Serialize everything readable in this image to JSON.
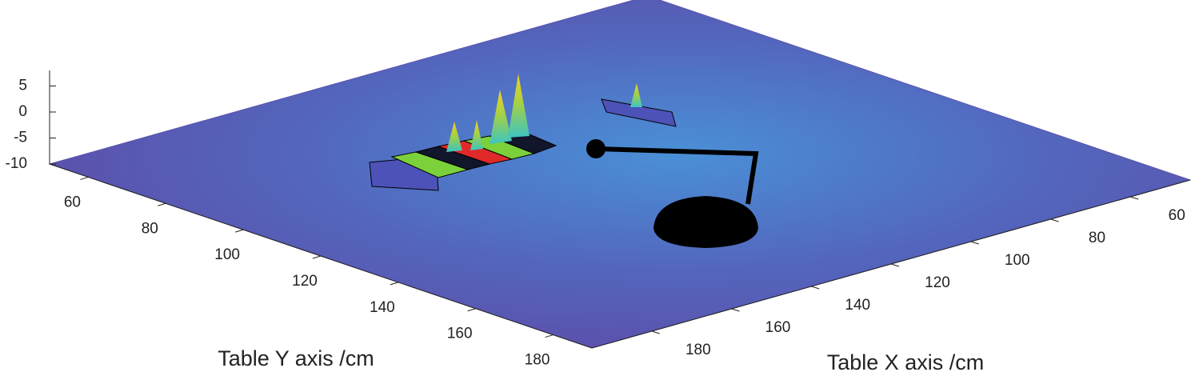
{
  "chart_data": {
    "type": "surface3d",
    "xlabel": "Table X axis /cm",
    "ylabel": "Table Y axis /cm",
    "xlim": [
      45,
      195
    ],
    "xticks": [
      60,
      80,
      100,
      120,
      140,
      160,
      180
    ],
    "ylim": [
      50,
      190
    ],
    "yticks": [
      60,
      80,
      100,
      120,
      140,
      160,
      180
    ],
    "zlim": [
      -10,
      8
    ],
    "zticks": [
      5,
      0,
      -5,
      -10
    ],
    "color": "#5b55ad"
  }
}
